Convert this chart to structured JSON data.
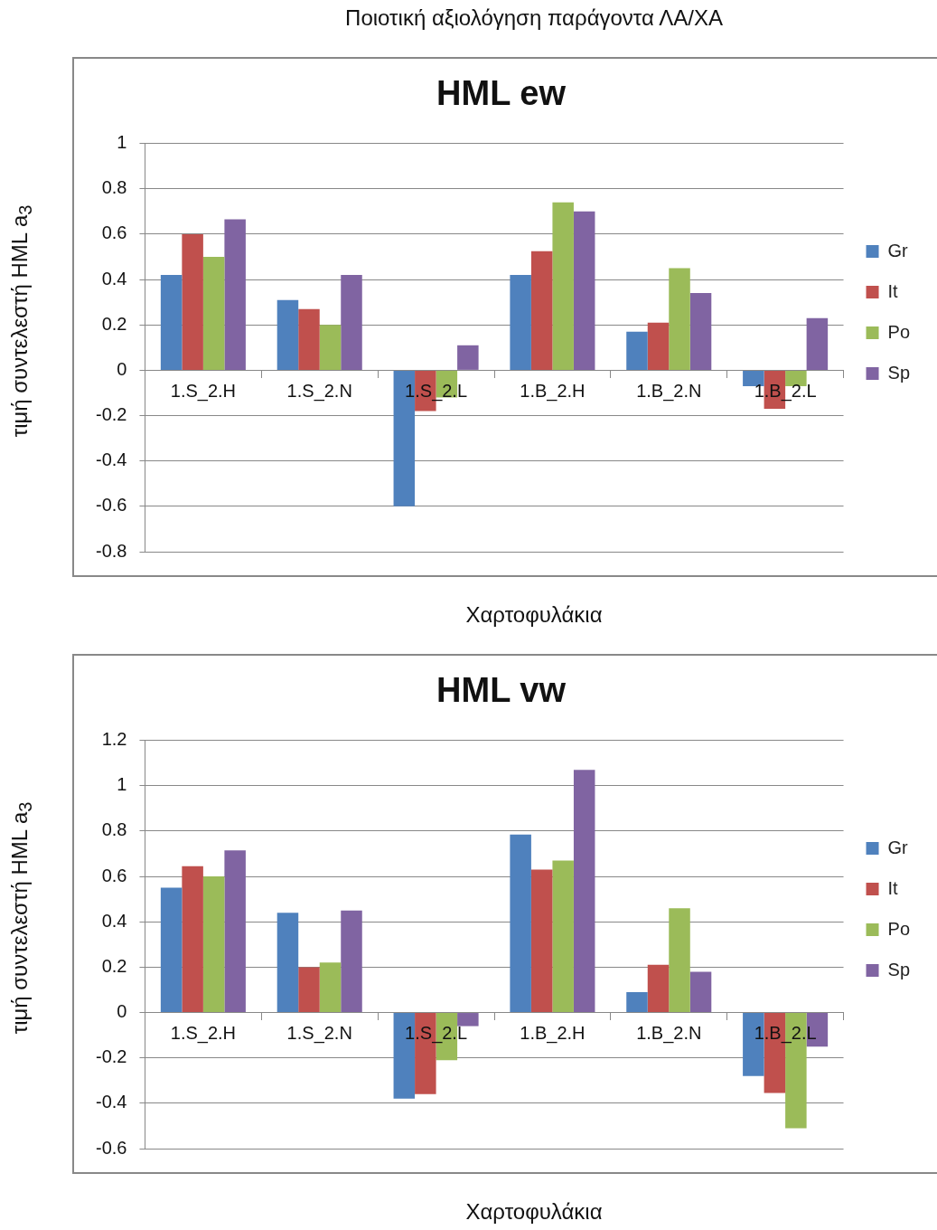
{
  "chart_data": [
    {
      "type": "bar",
      "title": "HML ew",
      "annotations": [
        "Ποιοτική αξιολόγηση παράγοντα ΛΑ/ΧΑ"
      ],
      "xlabel": "Χαρτοφυλάκια",
      "ylabel": "τιμή συντελεστή HML a$_{3}$",
      "categories": [
        "1.S_2.H",
        "1.S_2.N",
        "1.S_2.L",
        "1.B_2.H",
        "1.B_2.N",
        "1.B_2.L"
      ],
      "series": [
        {
          "name": "Gr",
          "color": "#4f81bd",
          "values": [
            0.42,
            0.31,
            -0.6,
            0.42,
            0.17,
            -0.07
          ]
        },
        {
          "name": "It",
          "color": "#c0504d",
          "values": [
            0.6,
            0.27,
            -0.18,
            0.525,
            0.21,
            -0.17
          ]
        },
        {
          "name": "Po",
          "color": "#9bbb59",
          "values": [
            0.5,
            0.2,
            -0.12,
            0.74,
            0.45,
            -0.07
          ]
        },
        {
          "name": "Sp",
          "color": "#8064a2",
          "values": [
            0.665,
            0.42,
            0.11,
            0.7,
            0.34,
            0.23
          ]
        }
      ],
      "ylim": [
        -0.8,
        1
      ],
      "yticks": [
        -0.8,
        -0.6,
        -0.4,
        -0.2,
        0,
        0.2,
        0.4,
        0.6,
        0.8,
        1
      ],
      "grid": "y",
      "legend": "right"
    },
    {
      "type": "bar",
      "title": "HML vw",
      "xlabel": "Χαρτοφυλάκια",
      "ylabel": "τιμή συντελεστή HML a$_{3}$",
      "categories": [
        "1.S_2.H",
        "1.S_2.N",
        "1.S_2.L",
        "1.B_2.H",
        "1.B_2.N",
        "1.B_2.L"
      ],
      "series": [
        {
          "name": "Gr",
          "color": "#4f81bd",
          "values": [
            0.55,
            0.44,
            -0.38,
            0.785,
            0.09,
            -0.28
          ]
        },
        {
          "name": "It",
          "color": "#c0504d",
          "values": [
            0.645,
            0.2,
            -0.36,
            0.63,
            0.21,
            -0.355
          ]
        },
        {
          "name": "Po",
          "color": "#9bbb59",
          "values": [
            0.6,
            0.22,
            -0.21,
            0.67,
            0.46,
            -0.51
          ]
        },
        {
          "name": "Sp",
          "color": "#8064a2",
          "values": [
            0.715,
            0.45,
            -0.06,
            1.07,
            0.18,
            -0.15
          ]
        }
      ],
      "ylim": [
        -0.6,
        1.2
      ],
      "yticks": [
        -0.6,
        -0.4,
        -0.2,
        0,
        0.2,
        0.4,
        0.6,
        0.8,
        1,
        1.2
      ],
      "grid": "y",
      "legend": "right"
    }
  ]
}
